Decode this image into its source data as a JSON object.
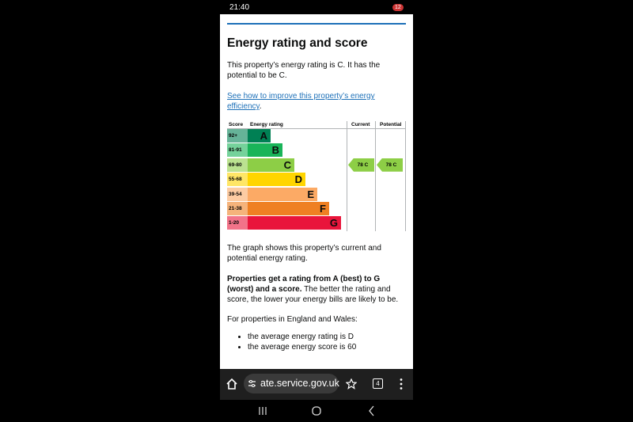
{
  "status_bar": {
    "time": "21:40",
    "battery": "12"
  },
  "content": {
    "title": "Energy rating and score",
    "intro": "This property’s energy rating is C. It has the potential to be C.",
    "link": "See how to improve this property’s energy efficiency",
    "link_suffix": ".",
    "chart": {
      "headers": [
        "Score",
        "Energy rating",
        "Current",
        "Potential"
      ],
      "bands": [
        {
          "score": "92+",
          "rating": "A"
        },
        {
          "score": "81-91",
          "rating": "B"
        },
        {
          "score": "69-80",
          "rating": "C"
        },
        {
          "score": "55-68",
          "rating": "D"
        },
        {
          "score": "39-54",
          "rating": "E"
        },
        {
          "score": "21-38",
          "rating": "F"
        },
        {
          "score": "1-20",
          "rating": "G"
        }
      ],
      "current": "78 C",
      "potential": "78 C"
    },
    "graph_note": "The graph shows this property’s current and potential energy rating.",
    "rating_bold": "Properties get a rating from A (best) to G (worst) and a score.",
    "rating_rest": " The better the rating and score, the lower your energy bills are likely to be.",
    "england_wales": "For properties in England and Wales:",
    "bullets": [
      "the average energy rating is D",
      "the average energy score is 60"
    ]
  },
  "browser": {
    "url": "ate.service.gov.uk",
    "tabs": "4"
  }
}
